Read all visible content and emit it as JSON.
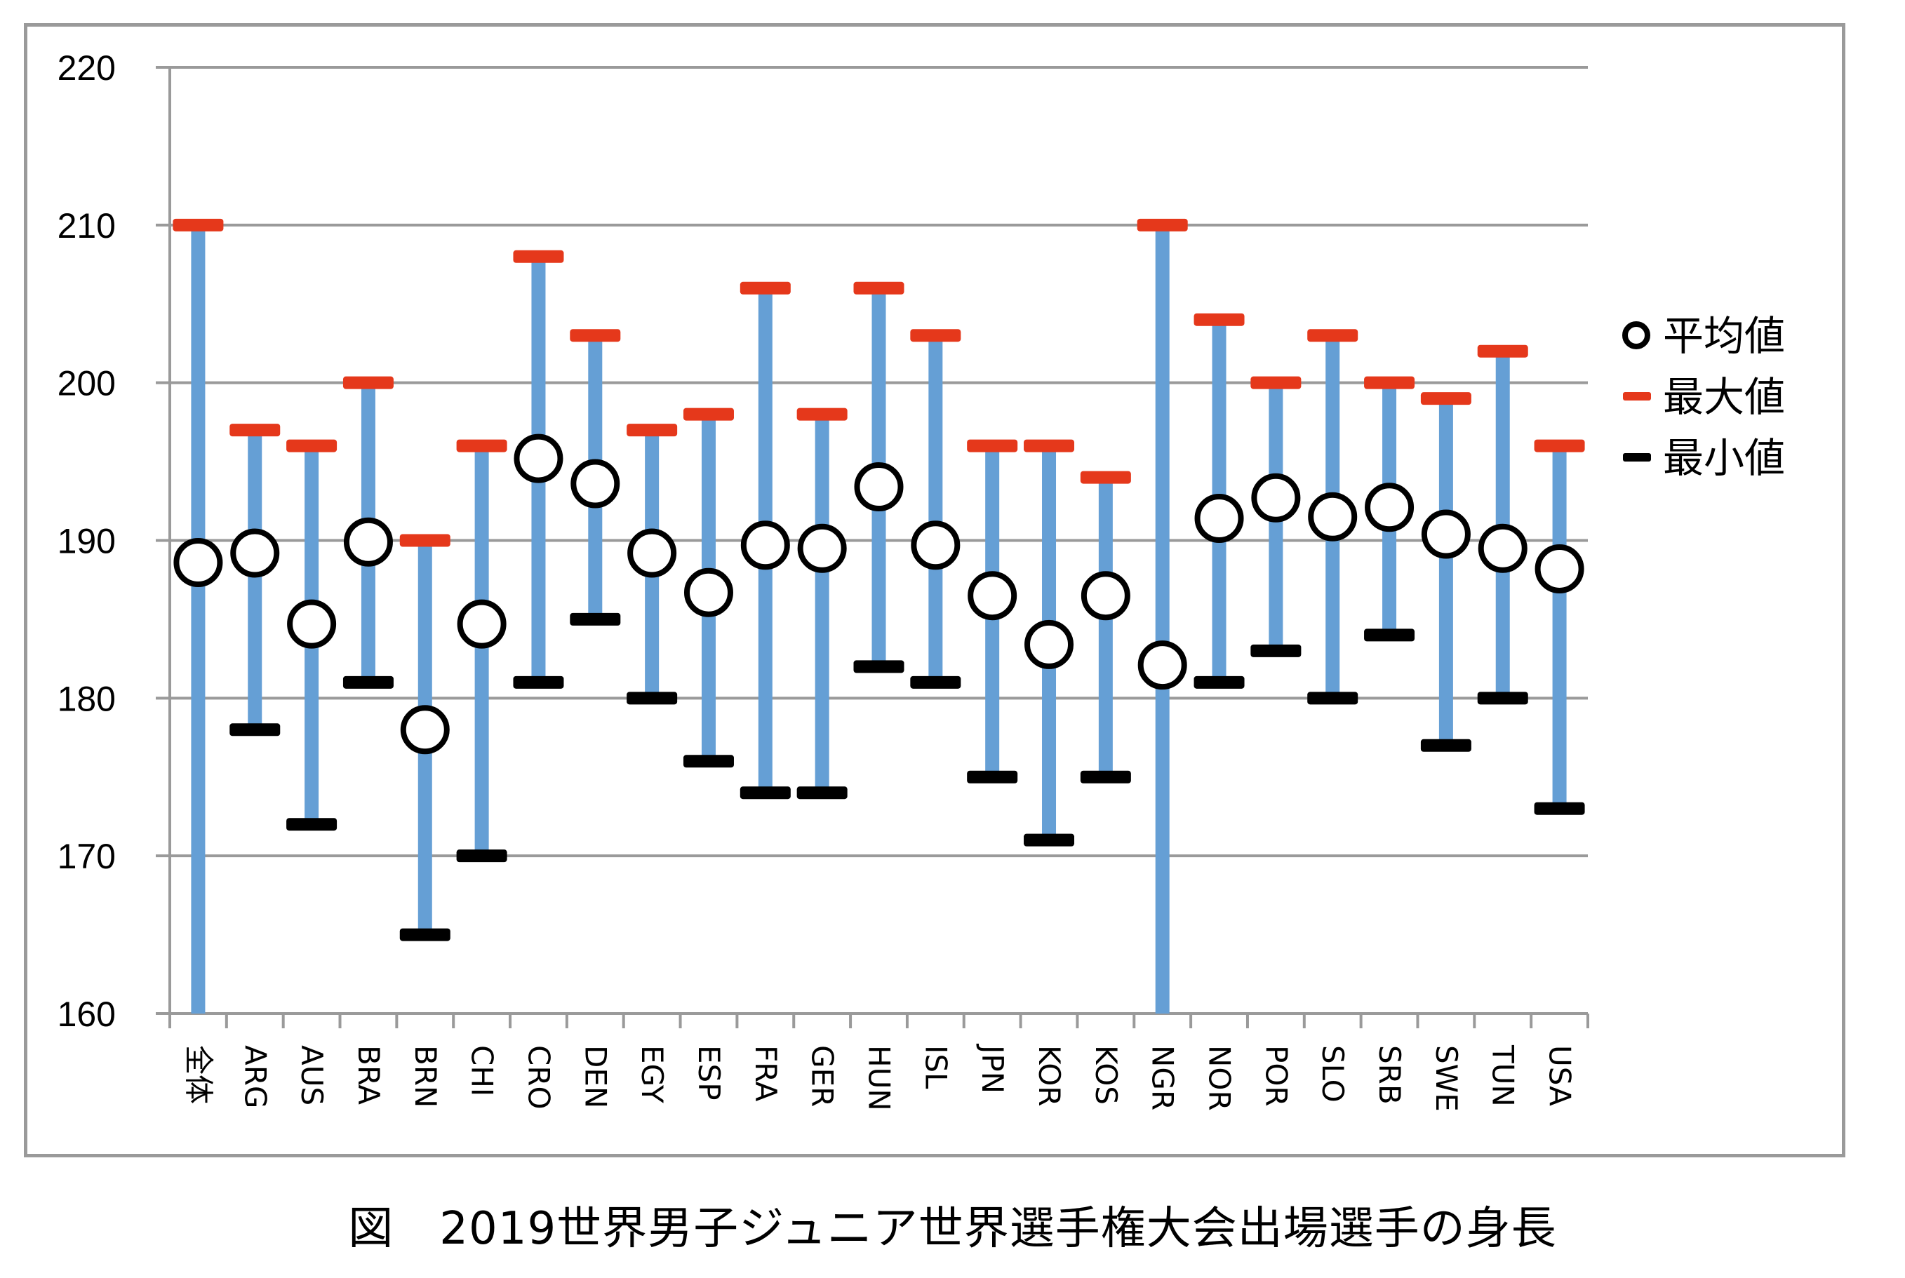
{
  "figure_title": "図　2019世界男子ジュニア世界選手権大会出場選手の身長",
  "colors": {
    "range_line": "#659fd5",
    "max_marker": "#e5381b",
    "min_marker": "#000000",
    "mean_marker_stroke": "#000000",
    "mean_marker_fill": "#ffffff",
    "grid": "#9a9a9a"
  },
  "legend": {
    "items": [
      {
        "label": "平均値",
        "marker": "circle"
      },
      {
        "label": "最大値",
        "marker": "red-dash"
      },
      {
        "label": "最小値",
        "marker": "black-dash"
      }
    ]
  },
  "chart_data": {
    "type": "range-dot",
    "title": "図　2019世界男子ジュニア世界選手権大会出場選手の身長",
    "xlabel": "",
    "ylabel": "",
    "ylim": [
      160,
      220
    ],
    "yticks": [
      "160",
      "170",
      "180",
      "190",
      "200",
      "210",
      "220"
    ],
    "grid": true,
    "legend_position": "right",
    "categories": [
      "全体",
      "ARG",
      "AUS",
      "BRA",
      "BRN",
      "CHI",
      "CRO",
      "DEN",
      "EGY",
      "ESP",
      "FRA",
      "GER",
      "HUN",
      "ISL",
      "JPN",
      "KOR",
      "KOS",
      "NGR",
      "NOR",
      "POR",
      "SLO",
      "SRB",
      "SWE",
      "TUN",
      "USA"
    ],
    "series": [
      {
        "name": "平均値",
        "values": [
          188.6,
          189.2,
          184.7,
          189.9,
          178.0,
          184.7,
          195.2,
          193.6,
          189.2,
          186.7,
          189.7,
          189.5,
          193.4,
          189.7,
          186.5,
          183.4,
          186.5,
          182.1,
          191.4,
          192.7,
          191.5,
          192.1,
          190.4,
          189.5,
          188.2
        ]
      },
      {
        "name": "最大値",
        "values": [
          210,
          197,
          196,
          200,
          190,
          196,
          208,
          203,
          197,
          198,
          206,
          198,
          206,
          203,
          196,
          196,
          194,
          210,
          204,
          200,
          203,
          200,
          199,
          202,
          196
        ]
      },
      {
        "name": "最小値",
        "values": [
          null,
          178,
          172,
          181,
          165,
          170,
          181,
          185,
          180,
          176,
          174,
          174,
          182,
          181,
          175,
          171,
          175,
          null,
          181,
          183,
          180,
          184,
          177,
          180,
          173
        ]
      }
    ]
  }
}
